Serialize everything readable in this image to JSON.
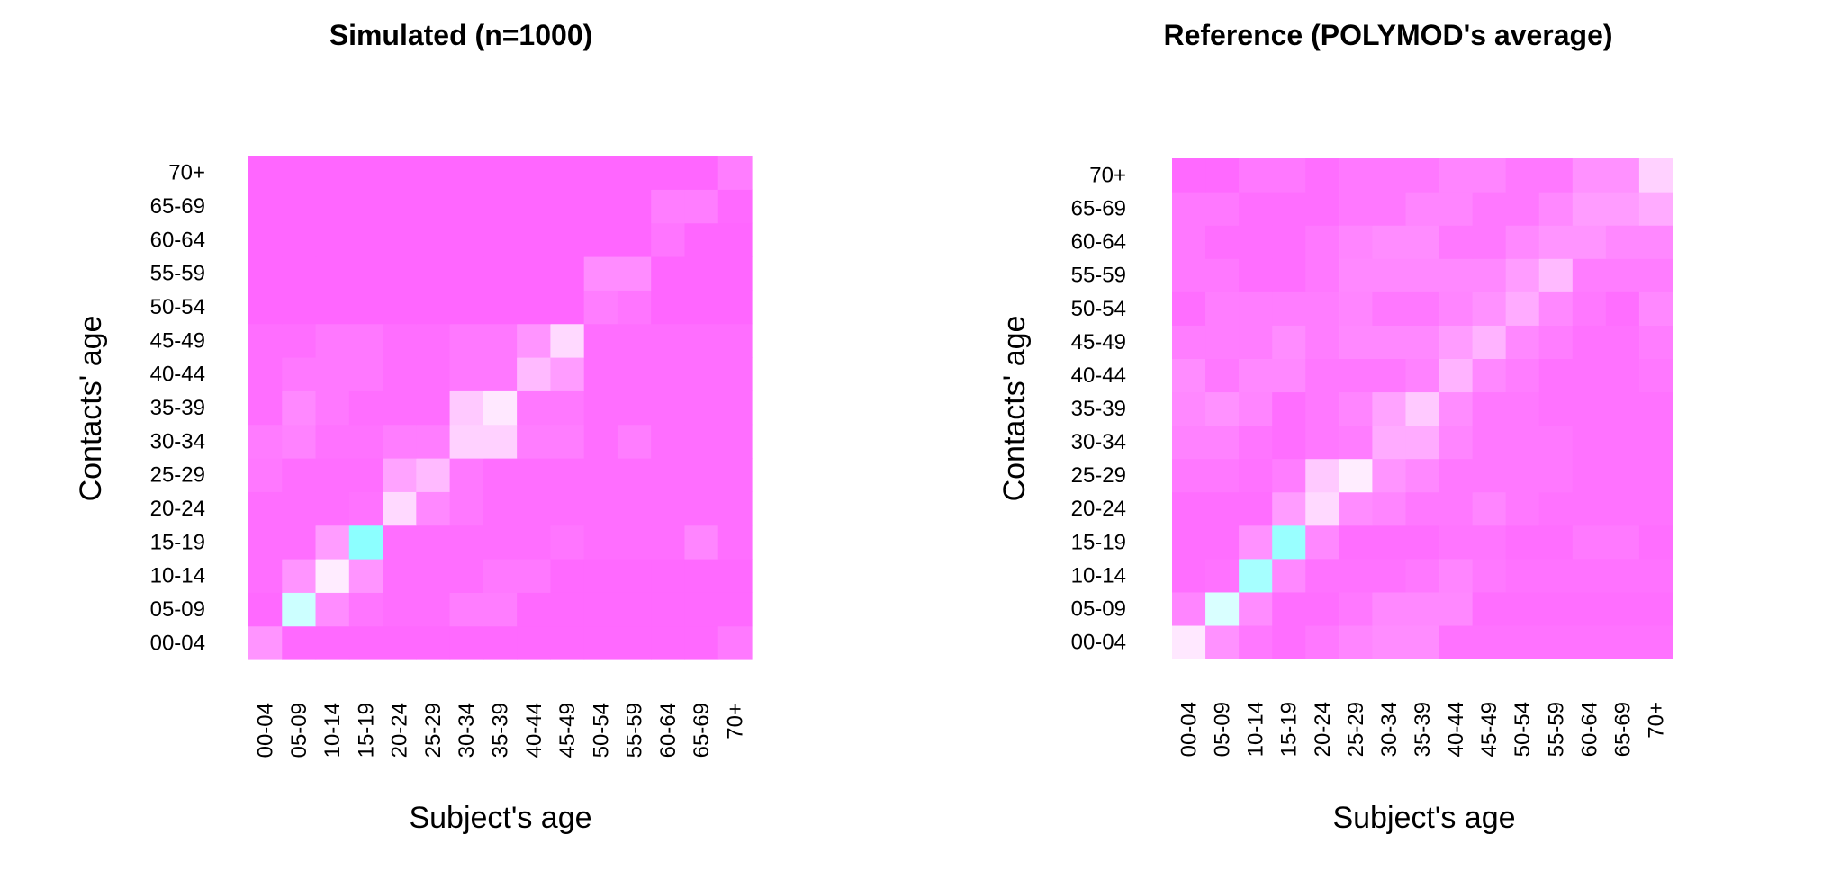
{
  "chart_data": [
    {
      "type": "heatmap",
      "title": "Simulated (n=1000)",
      "xlabel": "Subject's age",
      "ylabel": "Contacts' age",
      "categories": [
        "00-04",
        "05-09",
        "10-14",
        "15-19",
        "20-24",
        "25-29",
        "30-34",
        "35-39",
        "40-44",
        "45-49",
        "50-54",
        "55-59",
        "60-64",
        "65-69",
        "70+"
      ],
      "colors": [
        "#ff66ff",
        "#ffffff",
        "#66ffff"
      ],
      "values": [
        [
          0.7,
          0.98,
          0.98,
          0.98,
          0.98,
          0.98,
          0.98,
          0.98,
          0.98,
          0.98,
          0.98,
          0.98,
          0.98,
          0.98,
          1.05
        ],
        [
          0.98,
          1.6,
          0.75,
          0.9,
          0.95,
          0.95,
          0.85,
          0.85,
          0.98,
          0.98,
          0.98,
          0.98,
          0.98,
          0.98,
          0.98
        ],
        [
          0.95,
          0.7,
          1.35,
          0.7,
          0.95,
          0.95,
          0.95,
          0.88,
          0.88,
          0.98,
          0.98,
          0.98,
          0.98,
          0.98,
          0.98
        ],
        [
          0.95,
          0.95,
          0.65,
          1.85,
          0.95,
          0.95,
          0.95,
          0.95,
          0.95,
          0.9,
          0.95,
          0.95,
          0.95,
          1.08,
          0.95
        ],
        [
          0.95,
          0.95,
          0.95,
          0.92,
          0.25,
          0.78,
          0.88,
          0.95,
          0.95,
          0.95,
          0.95,
          0.95,
          0.95,
          0.95,
          0.95
        ],
        [
          0.88,
          0.95,
          0.95,
          0.95,
          0.6,
          0.45,
          0.88,
          0.95,
          0.95,
          0.95,
          0.95,
          0.95,
          0.95,
          0.95,
          0.95
        ],
        [
          0.86,
          0.82,
          0.92,
          0.92,
          0.85,
          0.85,
          0.3,
          0.3,
          0.85,
          0.85,
          0.95,
          0.85,
          0.95,
          0.95,
          0.95
        ],
        [
          0.95,
          0.78,
          0.88,
          0.95,
          0.95,
          0.95,
          0.35,
          0.15,
          0.88,
          0.88,
          0.95,
          0.95,
          0.95,
          0.95,
          0.95
        ],
        [
          0.95,
          0.88,
          0.88,
          0.88,
          0.95,
          0.95,
          0.88,
          0.88,
          0.45,
          0.65,
          0.95,
          0.95,
          0.95,
          0.95,
          0.95
        ],
        [
          0.95,
          0.95,
          0.88,
          0.88,
          0.95,
          0.95,
          0.88,
          0.88,
          0.7,
          0.25,
          0.95,
          0.95,
          0.95,
          0.95,
          0.95
        ],
        [
          1.0,
          1.0,
          1.0,
          1.0,
          1.0,
          1.0,
          1.0,
          1.0,
          1.0,
          1.0,
          0.85,
          0.9,
          1.0,
          1.0,
          1.0
        ],
        [
          1.0,
          1.0,
          1.0,
          1.0,
          1.0,
          1.0,
          1.0,
          1.0,
          1.0,
          1.0,
          0.75,
          0.75,
          1.0,
          1.0,
          1.0
        ],
        [
          1.0,
          1.0,
          1.0,
          1.0,
          1.0,
          1.0,
          1.0,
          1.0,
          1.0,
          1.0,
          1.0,
          1.0,
          0.9,
          1.0,
          1.0
        ],
        [
          1.0,
          1.0,
          1.0,
          1.0,
          1.0,
          1.0,
          1.0,
          1.0,
          1.0,
          1.0,
          1.0,
          1.0,
          0.85,
          0.85,
          0.98
        ],
        [
          1.0,
          1.0,
          1.0,
          1.0,
          1.0,
          1.0,
          1.0,
          1.0,
          1.0,
          1.0,
          1.0,
          1.0,
          1.0,
          1.0,
          0.85
        ]
      ]
    },
    {
      "type": "heatmap",
      "title": "Reference (POLYMOD's average)",
      "xlabel": "Subject's age",
      "ylabel": "Contacts' age",
      "categories": [
        "00-04",
        "05-09",
        "10-14",
        "15-19",
        "20-24",
        "25-29",
        "30-34",
        "35-39",
        "40-44",
        "45-49",
        "50-54",
        "55-59",
        "60-64",
        "65-69",
        "70+"
      ],
      "colors": [
        "#ff66ff",
        "#ffffff",
        "#66ffff"
      ],
      "values": [
        [
          0.15,
          0.72,
          0.88,
          0.95,
          0.88,
          0.8,
          0.75,
          0.75,
          0.92,
          0.92,
          0.92,
          0.92,
          0.92,
          0.92,
          0.92
        ],
        [
          0.8,
          1.55,
          0.75,
          0.95,
          0.95,
          0.88,
          0.78,
          0.78,
          0.78,
          0.95,
          0.95,
          0.95,
          0.95,
          0.95,
          0.95
        ],
        [
          0.95,
          0.92,
          1.75,
          0.78,
          0.92,
          0.92,
          0.92,
          0.88,
          0.8,
          0.88,
          0.92,
          0.92,
          0.92,
          0.92,
          0.92
        ],
        [
          0.95,
          0.95,
          0.72,
          1.8,
          0.78,
          0.95,
          0.95,
          0.95,
          0.9,
          0.9,
          0.95,
          0.95,
          1.05,
          1.05,
          0.95
        ],
        [
          0.95,
          0.95,
          0.95,
          0.65,
          1.3,
          0.75,
          0.8,
          0.88,
          0.88,
          0.8,
          0.88,
          0.92,
          0.92,
          0.92,
          0.92
        ],
        [
          0.88,
          0.88,
          0.92,
          0.85,
          0.35,
          0.12,
          0.7,
          0.78,
          0.88,
          0.88,
          0.88,
          0.88,
          0.92,
          0.92,
          0.92
        ],
        [
          0.82,
          0.82,
          0.9,
          0.95,
          0.88,
          0.85,
          0.55,
          0.55,
          0.8,
          0.88,
          0.88,
          0.88,
          0.92,
          0.92,
          0.92
        ],
        [
          0.78,
          0.72,
          0.8,
          0.95,
          0.88,
          0.8,
          0.6,
          0.35,
          0.75,
          0.88,
          0.88,
          0.92,
          0.92,
          0.92,
          0.92
        ],
        [
          0.75,
          0.88,
          0.78,
          0.78,
          0.88,
          0.88,
          0.88,
          0.82,
          0.5,
          0.78,
          0.85,
          0.92,
          0.92,
          0.92,
          0.88
        ],
        [
          0.85,
          0.85,
          0.85,
          0.75,
          0.85,
          0.78,
          0.78,
          0.78,
          0.65,
          0.5,
          0.78,
          0.85,
          0.92,
          0.92,
          0.85
        ],
        [
          0.95,
          0.85,
          0.85,
          0.85,
          0.85,
          0.8,
          0.88,
          0.88,
          0.8,
          0.72,
          0.55,
          0.78,
          0.88,
          0.95,
          0.78
        ],
        [
          0.88,
          0.88,
          0.95,
          0.95,
          0.88,
          0.78,
          0.78,
          0.78,
          0.78,
          0.78,
          0.65,
          0.45,
          0.85,
          0.85,
          0.85
        ],
        [
          0.88,
          0.95,
          0.95,
          0.95,
          0.88,
          0.8,
          0.75,
          0.75,
          0.88,
          0.88,
          0.78,
          0.7,
          0.7,
          0.78,
          0.78
        ],
        [
          0.88,
          0.88,
          0.95,
          0.95,
          0.95,
          0.88,
          0.88,
          0.8,
          0.8,
          0.88,
          0.88,
          0.78,
          0.65,
          0.65,
          0.55
        ],
        [
          0.98,
          0.98,
          0.88,
          0.88,
          0.95,
          0.88,
          0.88,
          0.88,
          0.8,
          0.8,
          0.88,
          0.88,
          0.72,
          0.72,
          0.3
        ]
      ]
    }
  ]
}
